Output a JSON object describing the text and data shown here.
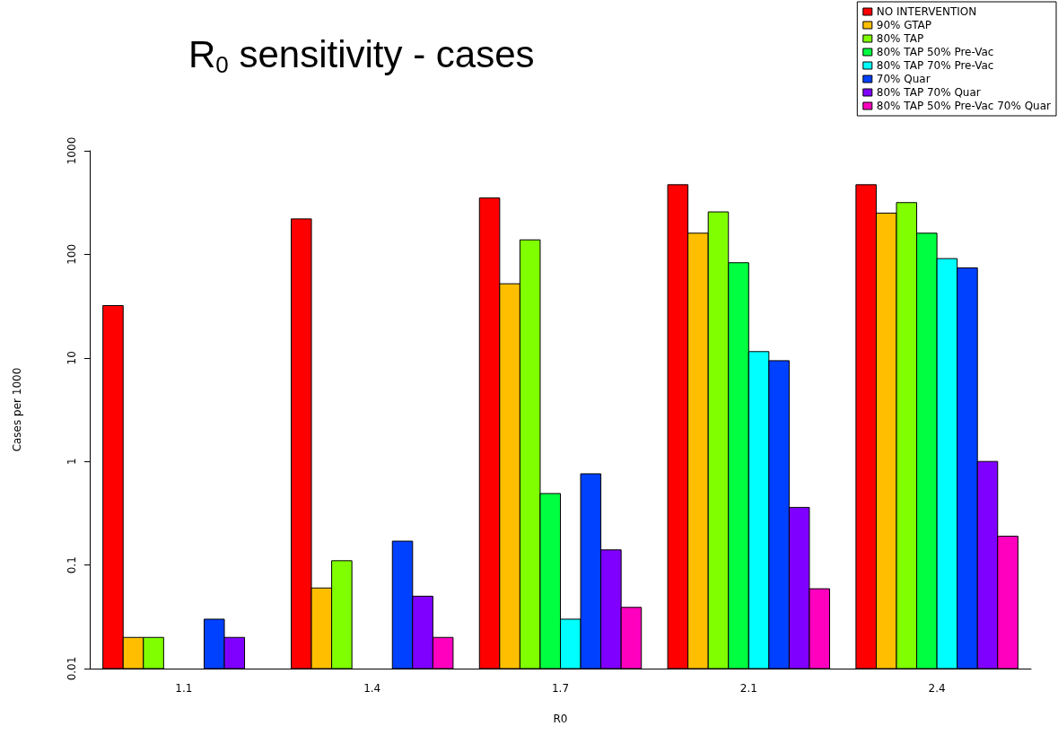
{
  "chart_data": {
    "type": "bar",
    "title": "R$_{0}$ sensitivity - cases",
    "xlabel": "R0",
    "ylabel": "Cases per 1000",
    "categories": [
      "1.1",
      "1.4",
      "1.7",
      "2.1",
      "2.4"
    ],
    "series": [
      {
        "name": "NO INTERVENTION",
        "color": "#ff0000",
        "values": [
          32,
          220,
          350,
          470,
          470
        ]
      },
      {
        "name": "90% GTAP",
        "color": "#ffbf00",
        "values": [
          0.02,
          0.06,
          52,
          160,
          250
        ]
      },
      {
        "name": "80% TAP",
        "color": "#80ff00",
        "values": [
          0.02,
          0.11,
          138,
          257,
          316
        ]
      },
      {
        "name": "80% TAP 50% Pre-Vac",
        "color": "#00ff40",
        "values": [
          null,
          null,
          0.49,
          83,
          160
        ]
      },
      {
        "name": "80% TAP 70% Pre-Vac",
        "color": "#00ffff",
        "values": [
          null,
          null,
          0.03,
          11.5,
          91
        ]
      },
      {
        "name": "70% Quar",
        "color": "#0040ff",
        "values": [
          0.03,
          0.17,
          0.76,
          9.4,
          74
        ]
      },
      {
        "name": "80% TAP 70% Quar",
        "color": "#8000ff",
        "values": [
          0.02,
          0.05,
          0.14,
          0.36,
          1
        ]
      },
      {
        "name": "80% TAP 50% Pre-Vac 70% Quar",
        "color": "#ff00bf",
        "values": [
          null,
          0.02,
          0.039,
          0.059,
          0.19
        ]
      }
    ],
    "log": "y",
    "ylim": [
      0.01,
      1000
    ],
    "yticks": [
      0.01,
      0.1,
      1,
      10,
      100,
      1000
    ],
    "grid": false,
    "legend": "top right"
  }
}
